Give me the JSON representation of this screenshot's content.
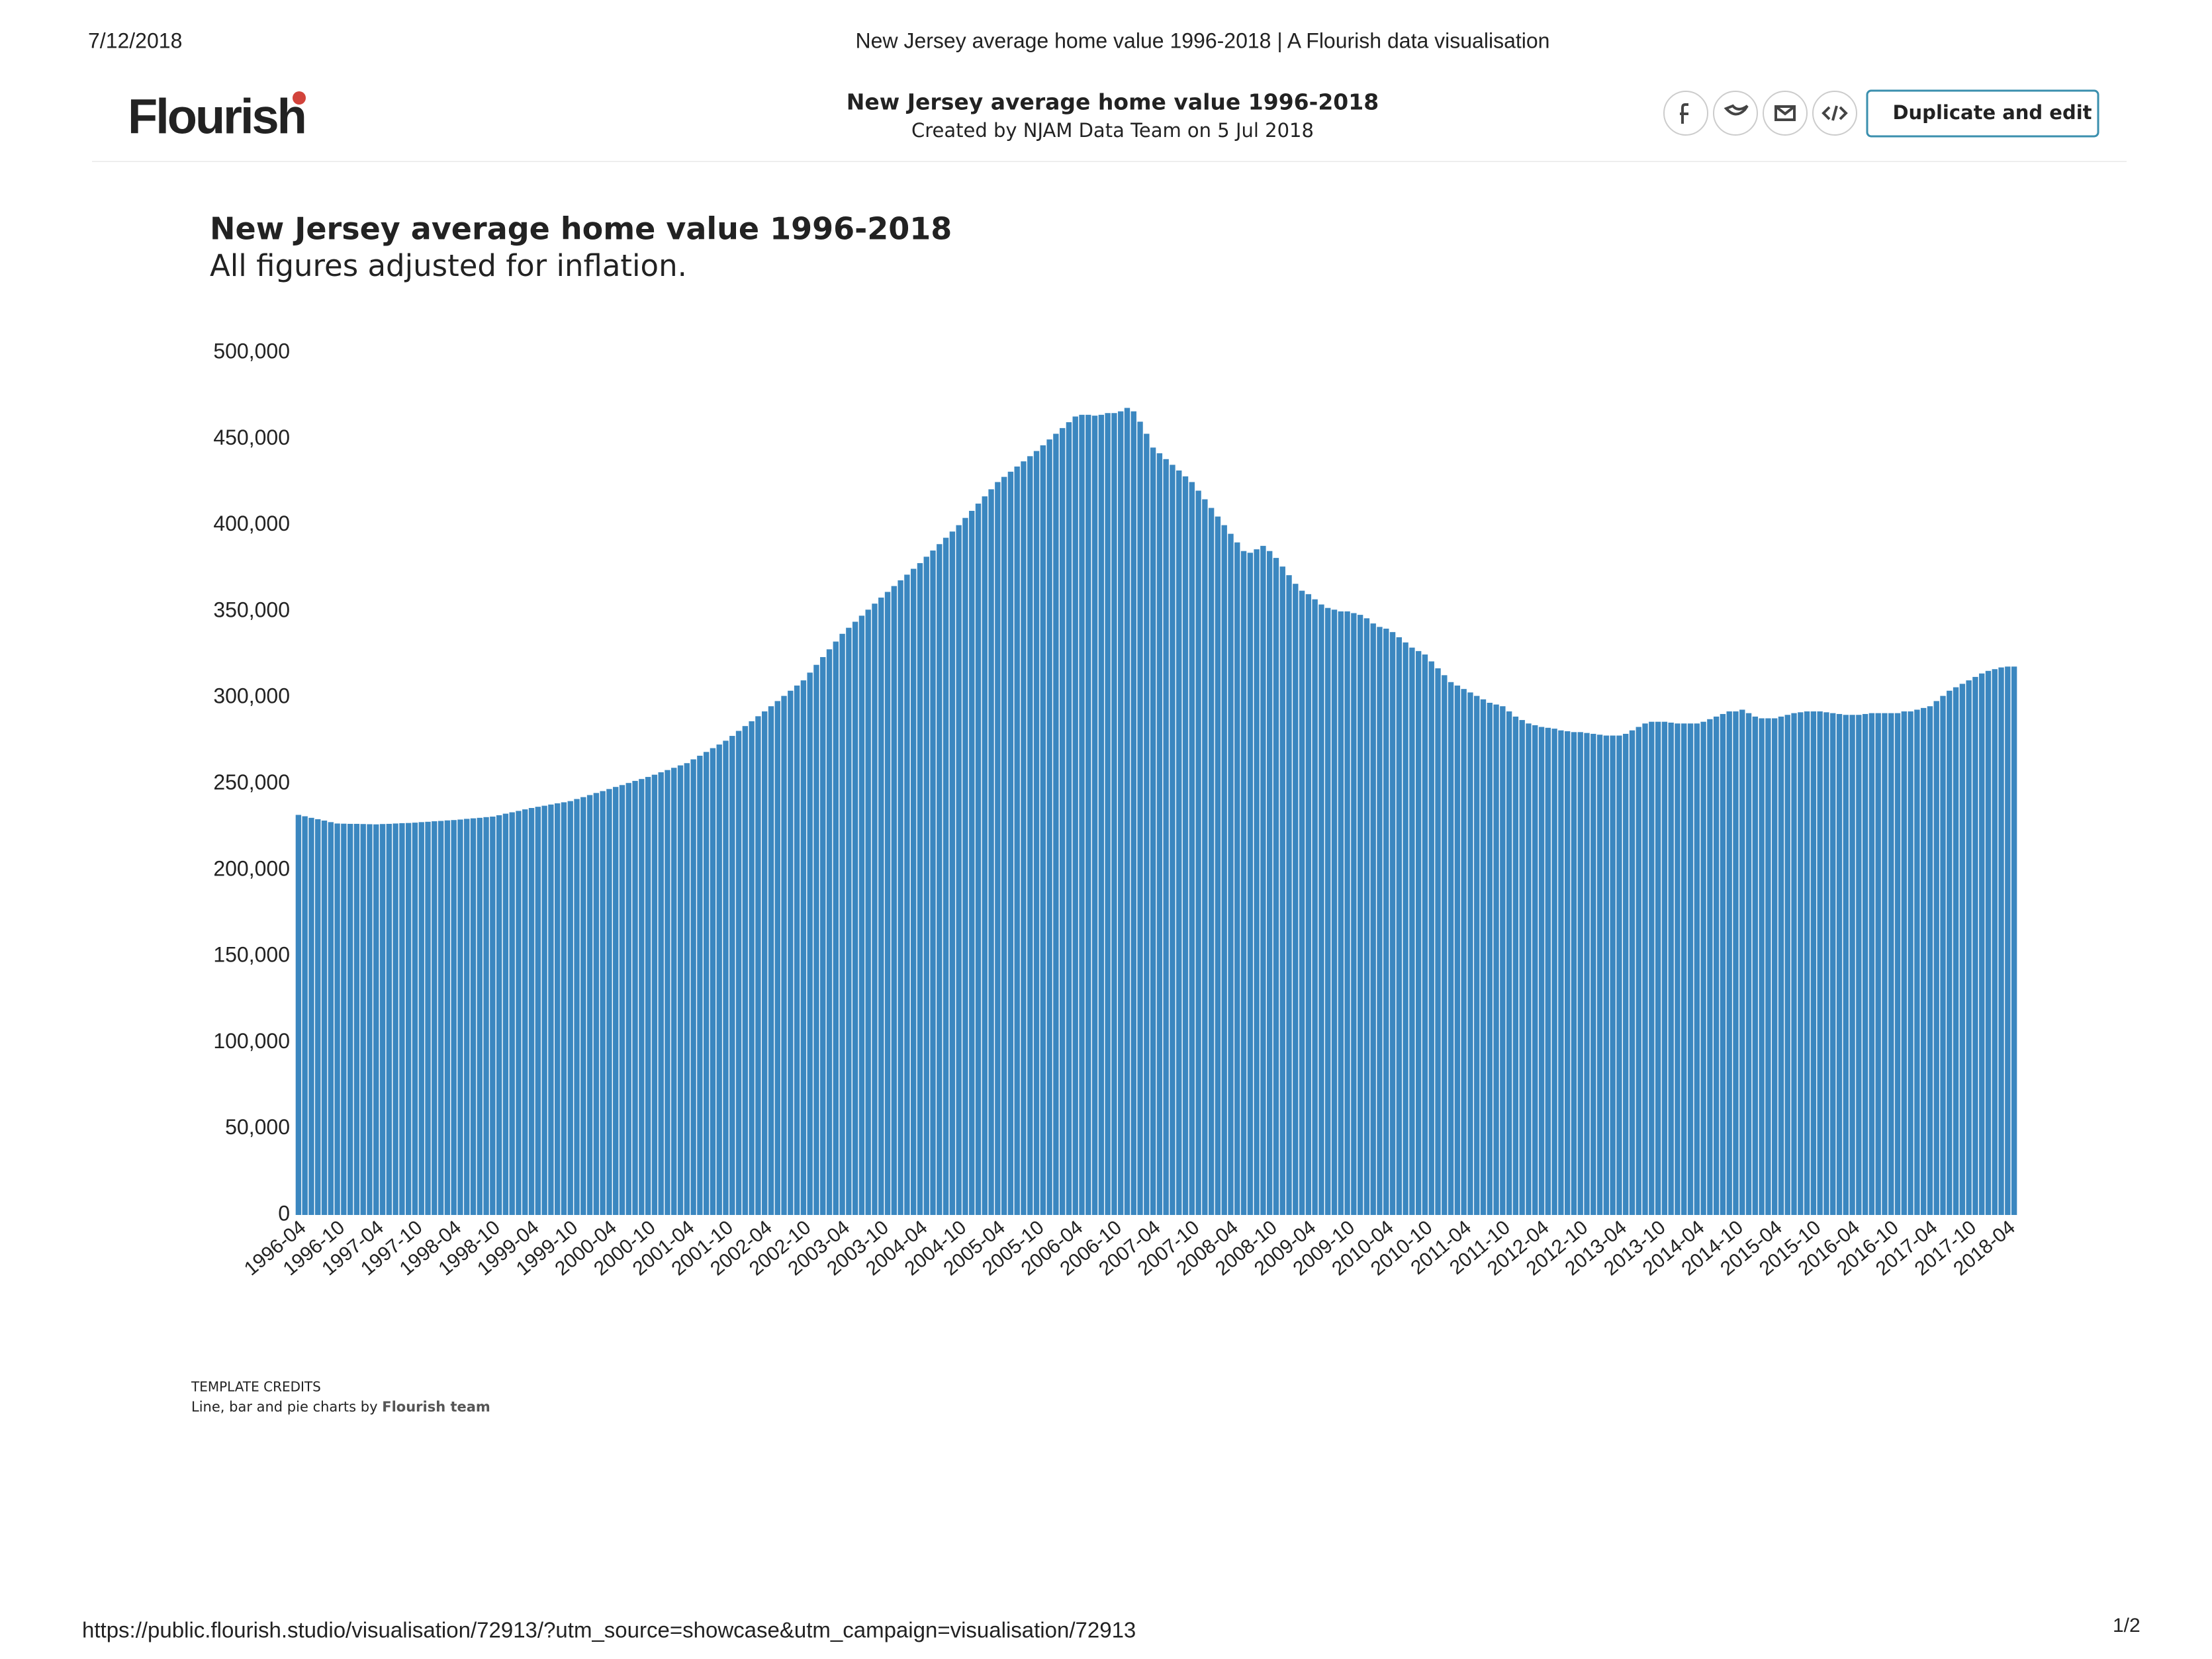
{
  "header": {
    "date": "7/12/2018",
    "page_title": "New Jersey average home value 1996-2018 | A Flourish data visualisation",
    "logo": "Flourish",
    "title": "New Jersey average home value 1996-2018",
    "created_by": "Created by NJAM Data Team on 5 Jul 2018",
    "button": "Duplicate and edit"
  },
  "credits": {
    "heading": "TEMPLATE CREDITS",
    "text": "Line, bar and pie charts by",
    "team": "Flourish team"
  },
  "footer": {
    "url": "https://public.flourish.studio/visualisation/72913/?utm_source=showcase&utm_campaign=visualisation/72913",
    "page": "1/2"
  },
  "chart_data": {
    "type": "bar",
    "title": "New Jersey average home value 1996-2018",
    "subtitle": "All figures adjusted for inflation.",
    "color": "#3b87c0",
    "ylim": [
      0,
      500000
    ],
    "yticks": [
      0,
      {
        "value": 50000,
        "label": "50,000"
      },
      {
        "value": 100000,
        "label": "100,000"
      },
      {
        "value": 150000,
        "label": "150,000"
      },
      {
        "value": 200000,
        "label": "200,000"
      },
      {
        "value": 250000,
        "label": "250,000"
      },
      {
        "value": 300000,
        "label": "300,000"
      },
      {
        "value": 350000,
        "label": "350,000"
      },
      {
        "value": 400000,
        "label": "400,000"
      },
      {
        "value": 450000,
        "label": "450,000"
      },
      {
        "value": 500000,
        "label": "500,000"
      }
    ],
    "categories": [
      "1996-04",
      null,
      null,
      null,
      null,
      null,
      "1996-10",
      null,
      null,
      null,
      null,
      null,
      "1997-04",
      null,
      null,
      null,
      null,
      null,
      "1997-10",
      null,
      null,
      null,
      null,
      null,
      "1998-04",
      null,
      null,
      null,
      null,
      null,
      "1998-10",
      null,
      null,
      null,
      null,
      null,
      "1999-04",
      null,
      null,
      null,
      null,
      null,
      "1999-10",
      null,
      null,
      null,
      null,
      null,
      "2000-04",
      null,
      null,
      null,
      null,
      null,
      "2000-10",
      null,
      null,
      null,
      null,
      null,
      "2001-04",
      null,
      null,
      null,
      null,
      null,
      "2001-10",
      null,
      null,
      null,
      null,
      null,
      "2002-04",
      null,
      null,
      null,
      null,
      null,
      "2002-10",
      null,
      null,
      null,
      null,
      null,
      "2003-04",
      null,
      null,
      null,
      null,
      null,
      "2003-10",
      null,
      null,
      null,
      null,
      null,
      "2004-04",
      null,
      null,
      null,
      null,
      null,
      "2004-10",
      null,
      null,
      null,
      null,
      null,
      "2005-04",
      null,
      null,
      null,
      null,
      null,
      "2005-10",
      null,
      null,
      null,
      null,
      null,
      "2006-04",
      null,
      null,
      null,
      null,
      null,
      "2006-10",
      null,
      null,
      null,
      null,
      null,
      "2007-04",
      null,
      null,
      null,
      null,
      null,
      "2007-10",
      null,
      null,
      null,
      null,
      null,
      "2008-04",
      null,
      null,
      null,
      null,
      null,
      "2008-10",
      null,
      null,
      null,
      null,
      null,
      "2009-04",
      null,
      null,
      null,
      null,
      null,
      "2009-10",
      null,
      null,
      null,
      null,
      null,
      "2010-04",
      null,
      null,
      null,
      null,
      null,
      "2010-10",
      null,
      null,
      null,
      null,
      null,
      "2011-04",
      null,
      null,
      null,
      null,
      null,
      "2011-10",
      null,
      null,
      null,
      null,
      null,
      "2012-04",
      null,
      null,
      null,
      null,
      null,
      "2012-10",
      null,
      null,
      null,
      null,
      null,
      "2013-04",
      null,
      null,
      null,
      null,
      null,
      "2013-10",
      null,
      null,
      null,
      null,
      null,
      "2014-04",
      null,
      null,
      null,
      null,
      null,
      "2014-10",
      null,
      null,
      null,
      null,
      null,
      "2015-04",
      null,
      null,
      null,
      null,
      null,
      "2015-10",
      null,
      null,
      null,
      null,
      null,
      "2016-04",
      null,
      null,
      null,
      null,
      null,
      "2016-10",
      null,
      null,
      null,
      null,
      null,
      "2017-04",
      null,
      null,
      null,
      null,
      null,
      "2017-10",
      null,
      null,
      null,
      null,
      null,
      "2018-04",
      null
    ],
    "values": [
      232000,
      231200,
      230300,
      229500,
      228700,
      227800,
      227000,
      226900,
      226800,
      226800,
      226700,
      226600,
      226500,
      226700,
      226800,
      227000,
      227200,
      227300,
      227500,
      227800,
      228000,
      228300,
      228500,
      228800,
      229000,
      229300,
      229700,
      230000,
      230300,
      230700,
      231000,
      231800,
      232700,
      233500,
      234300,
      235200,
      236000,
      236700,
      237300,
      238000,
      238700,
      239300,
      240000,
      241200,
      242300,
      243500,
      244700,
      245800,
      247000,
      248200,
      249300,
      250500,
      251700,
      252800,
      254000,
      255300,
      256700,
      258000,
      259300,
      260700,
      262000,
      264200,
      266300,
      268500,
      270700,
      272800,
      275000,
      277800,
      280700,
      283500,
      286300,
      289200,
      292000,
      295000,
      298000,
      301000,
      304000,
      307000,
      310000,
      314500,
      319000,
      323500,
      328000,
      332500,
      337000,
      340500,
      344000,
      347500,
      351000,
      354500,
      358000,
      361300,
      364700,
      368000,
      371300,
      374700,
      378000,
      381700,
      385300,
      389000,
      392700,
      396300,
      400000,
      404200,
      408300,
      412500,
      416700,
      420800,
      425000,
      428000,
      431000,
      434000,
      437000,
      440000,
      443000,
      446300,
      449700,
      453000,
      456300,
      459700,
      463000,
      464000,
      464000,
      463500,
      464000,
      465000,
      465000,
      466000,
      468000,
      466000,
      460000,
      453000,
      445000,
      441700,
      438300,
      435000,
      431700,
      428300,
      425000,
      420000,
      415000,
      410000,
      405000,
      400000,
      395000,
      390000,
      385000,
      384000,
      386000,
      388000,
      385000,
      381000,
      376000,
      371000,
      366000,
      362000,
      360000,
      357000,
      354000,
      352000,
      351000,
      350000,
      350000,
      349000,
      348000,
      346000,
      343000,
      341000,
      340000,
      338000,
      335000,
      332000,
      329000,
      327000,
      325000,
      321000,
      317000,
      313000,
      309000,
      307000,
      305000,
      303000,
      301000,
      299000,
      297000,
      296000,
      295000,
      292000,
      289000,
      287000,
      285000,
      284000,
      283000,
      282500,
      282000,
      281000,
      280500,
      280000,
      280000,
      279500,
      279000,
      278500,
      278000,
      278000,
      278000,
      279000,
      281000,
      283000,
      285000,
      286000,
      286000,
      286000,
      285500,
      285000,
      285000,
      285000,
      285000,
      286000,
      287500,
      289000,
      290500,
      292000,
      292000,
      293000,
      291000,
      289000,
      288000,
      288000,
      288000,
      289000,
      290000,
      291000,
      291500,
      292000,
      292000,
      292000,
      291500,
      291000,
      290500,
      290000,
      290000,
      290000,
      290500,
      291000,
      291000,
      291000,
      291000,
      291000,
      292000,
      292000,
      293000,
      294000,
      295000,
      298000,
      301000,
      304000,
      306000,
      308000,
      310000,
      312000,
      314000,
      315500,
      316500,
      317500,
      318000,
      318000
    ]
  }
}
